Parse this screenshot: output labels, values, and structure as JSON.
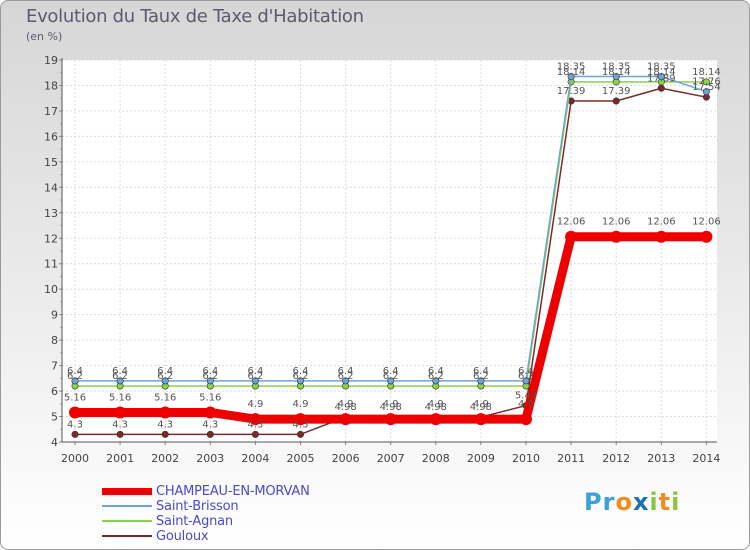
{
  "header": {
    "title": "Evolution du Taux de Taxe d'Habitation",
    "subtitle": "(en %)"
  },
  "logo": {
    "letters": [
      "P",
      "r",
      "o",
      "x",
      "i",
      "t",
      "i"
    ],
    "colors": [
      "#3aa0d8",
      "#3aa0d8",
      "#f28c1c",
      "#1f6fb5",
      "#8bc53f",
      "#f28c1c",
      "#8bc53f"
    ]
  },
  "chart_data": {
    "type": "line",
    "title": "Evolution du Taux de Taxe d'Habitation",
    "ylabel": "(en %)",
    "xlabel": "",
    "categories": [
      "2000",
      "2001",
      "2002",
      "2003",
      "2004",
      "2005",
      "2006",
      "2007",
      "2008",
      "2009",
      "2010",
      "2011",
      "2012",
      "2013",
      "2014"
    ],
    "ylim": [
      4,
      19
    ],
    "yticks": [
      "4",
      "5",
      "6",
      "7",
      "8",
      "9",
      "10",
      "11",
      "12",
      "13",
      "14",
      "15",
      "16",
      "17",
      "18",
      "19"
    ],
    "grid": true,
    "series": [
      {
        "name": "Gouloux",
        "color": "#7a2a2a",
        "values": [
          4.3,
          4.3,
          4.3,
          4.3,
          4.3,
          4.3,
          4.98,
          4.98,
          4.98,
          4.98,
          5.43,
          17.39,
          17.39,
          17.89,
          17.54
        ],
        "labels": [
          "4.3",
          "4.3",
          "4.3",
          "4.3",
          "4.3",
          "4.3",
          "4.98",
          "4.98",
          "4.98",
          "4.98",
          "5.43",
          "17.39",
          "17.39",
          "17.89",
          "17.54"
        ]
      },
      {
        "name": "Saint-Agnan",
        "color": "#8cd24a",
        "values": [
          6.2,
          6.2,
          6.2,
          6.2,
          6.2,
          6.2,
          6.2,
          6.2,
          6.2,
          6.2,
          6.2,
          18.14,
          18.14,
          18.14,
          18.14
        ],
        "labels": [
          "6.2",
          "6.2",
          "6.2",
          "6.2",
          "6.2",
          "6.2",
          "6.2",
          "6.2",
          "6.2",
          "6.2",
          "6.2",
          "18.14",
          "18.14",
          "18.14",
          "18.14"
        ]
      },
      {
        "name": "Saint-Brisson",
        "color": "#6fa3d6",
        "values": [
          6.4,
          6.4,
          6.4,
          6.4,
          6.4,
          6.4,
          6.4,
          6.4,
          6.4,
          6.4,
          6.4,
          18.35,
          18.35,
          18.35,
          17.76
        ],
        "labels": [
          "6.4",
          "6.4",
          "6.4",
          "6.4",
          "6.4",
          "6.4",
          "6.4",
          "6.4",
          "6.4",
          "6.4",
          "6.4",
          "18.35",
          "18.35",
          "18.35",
          "17.76"
        ]
      },
      {
        "name": "CHAMPEAU-EN-MORVAN",
        "color": "#ee0000",
        "values": [
          5.16,
          5.16,
          5.16,
          5.16,
          4.9,
          4.9,
          4.9,
          4.9,
          4.9,
          4.9,
          4.9,
          12.06,
          12.06,
          12.06,
          12.06
        ],
        "labels": [
          "5.16",
          "5.16",
          "5.16",
          "5.16",
          "4.9",
          "4.9",
          "4.9",
          "4.9",
          "4.9",
          "4.9",
          "4.9",
          "12.06",
          "12.06",
          "12.06",
          "12.06"
        ]
      }
    ],
    "legend": {
      "position": "bottom-left",
      "items": [
        {
          "name": "CHAMPEAU-EN-MORVAN",
          "color": "#ee0000",
          "text_color": "#4a4acb"
        },
        {
          "name": "Saint-Brisson",
          "color": "#6fa3d6",
          "text_color": "#4a4acb"
        },
        {
          "name": "Saint-Agnan",
          "color": "#8cd24a",
          "text_color": "#4a4acb"
        },
        {
          "name": "Gouloux",
          "color": "#7a2a2a",
          "text_color": "#4a4acb"
        }
      ]
    }
  }
}
